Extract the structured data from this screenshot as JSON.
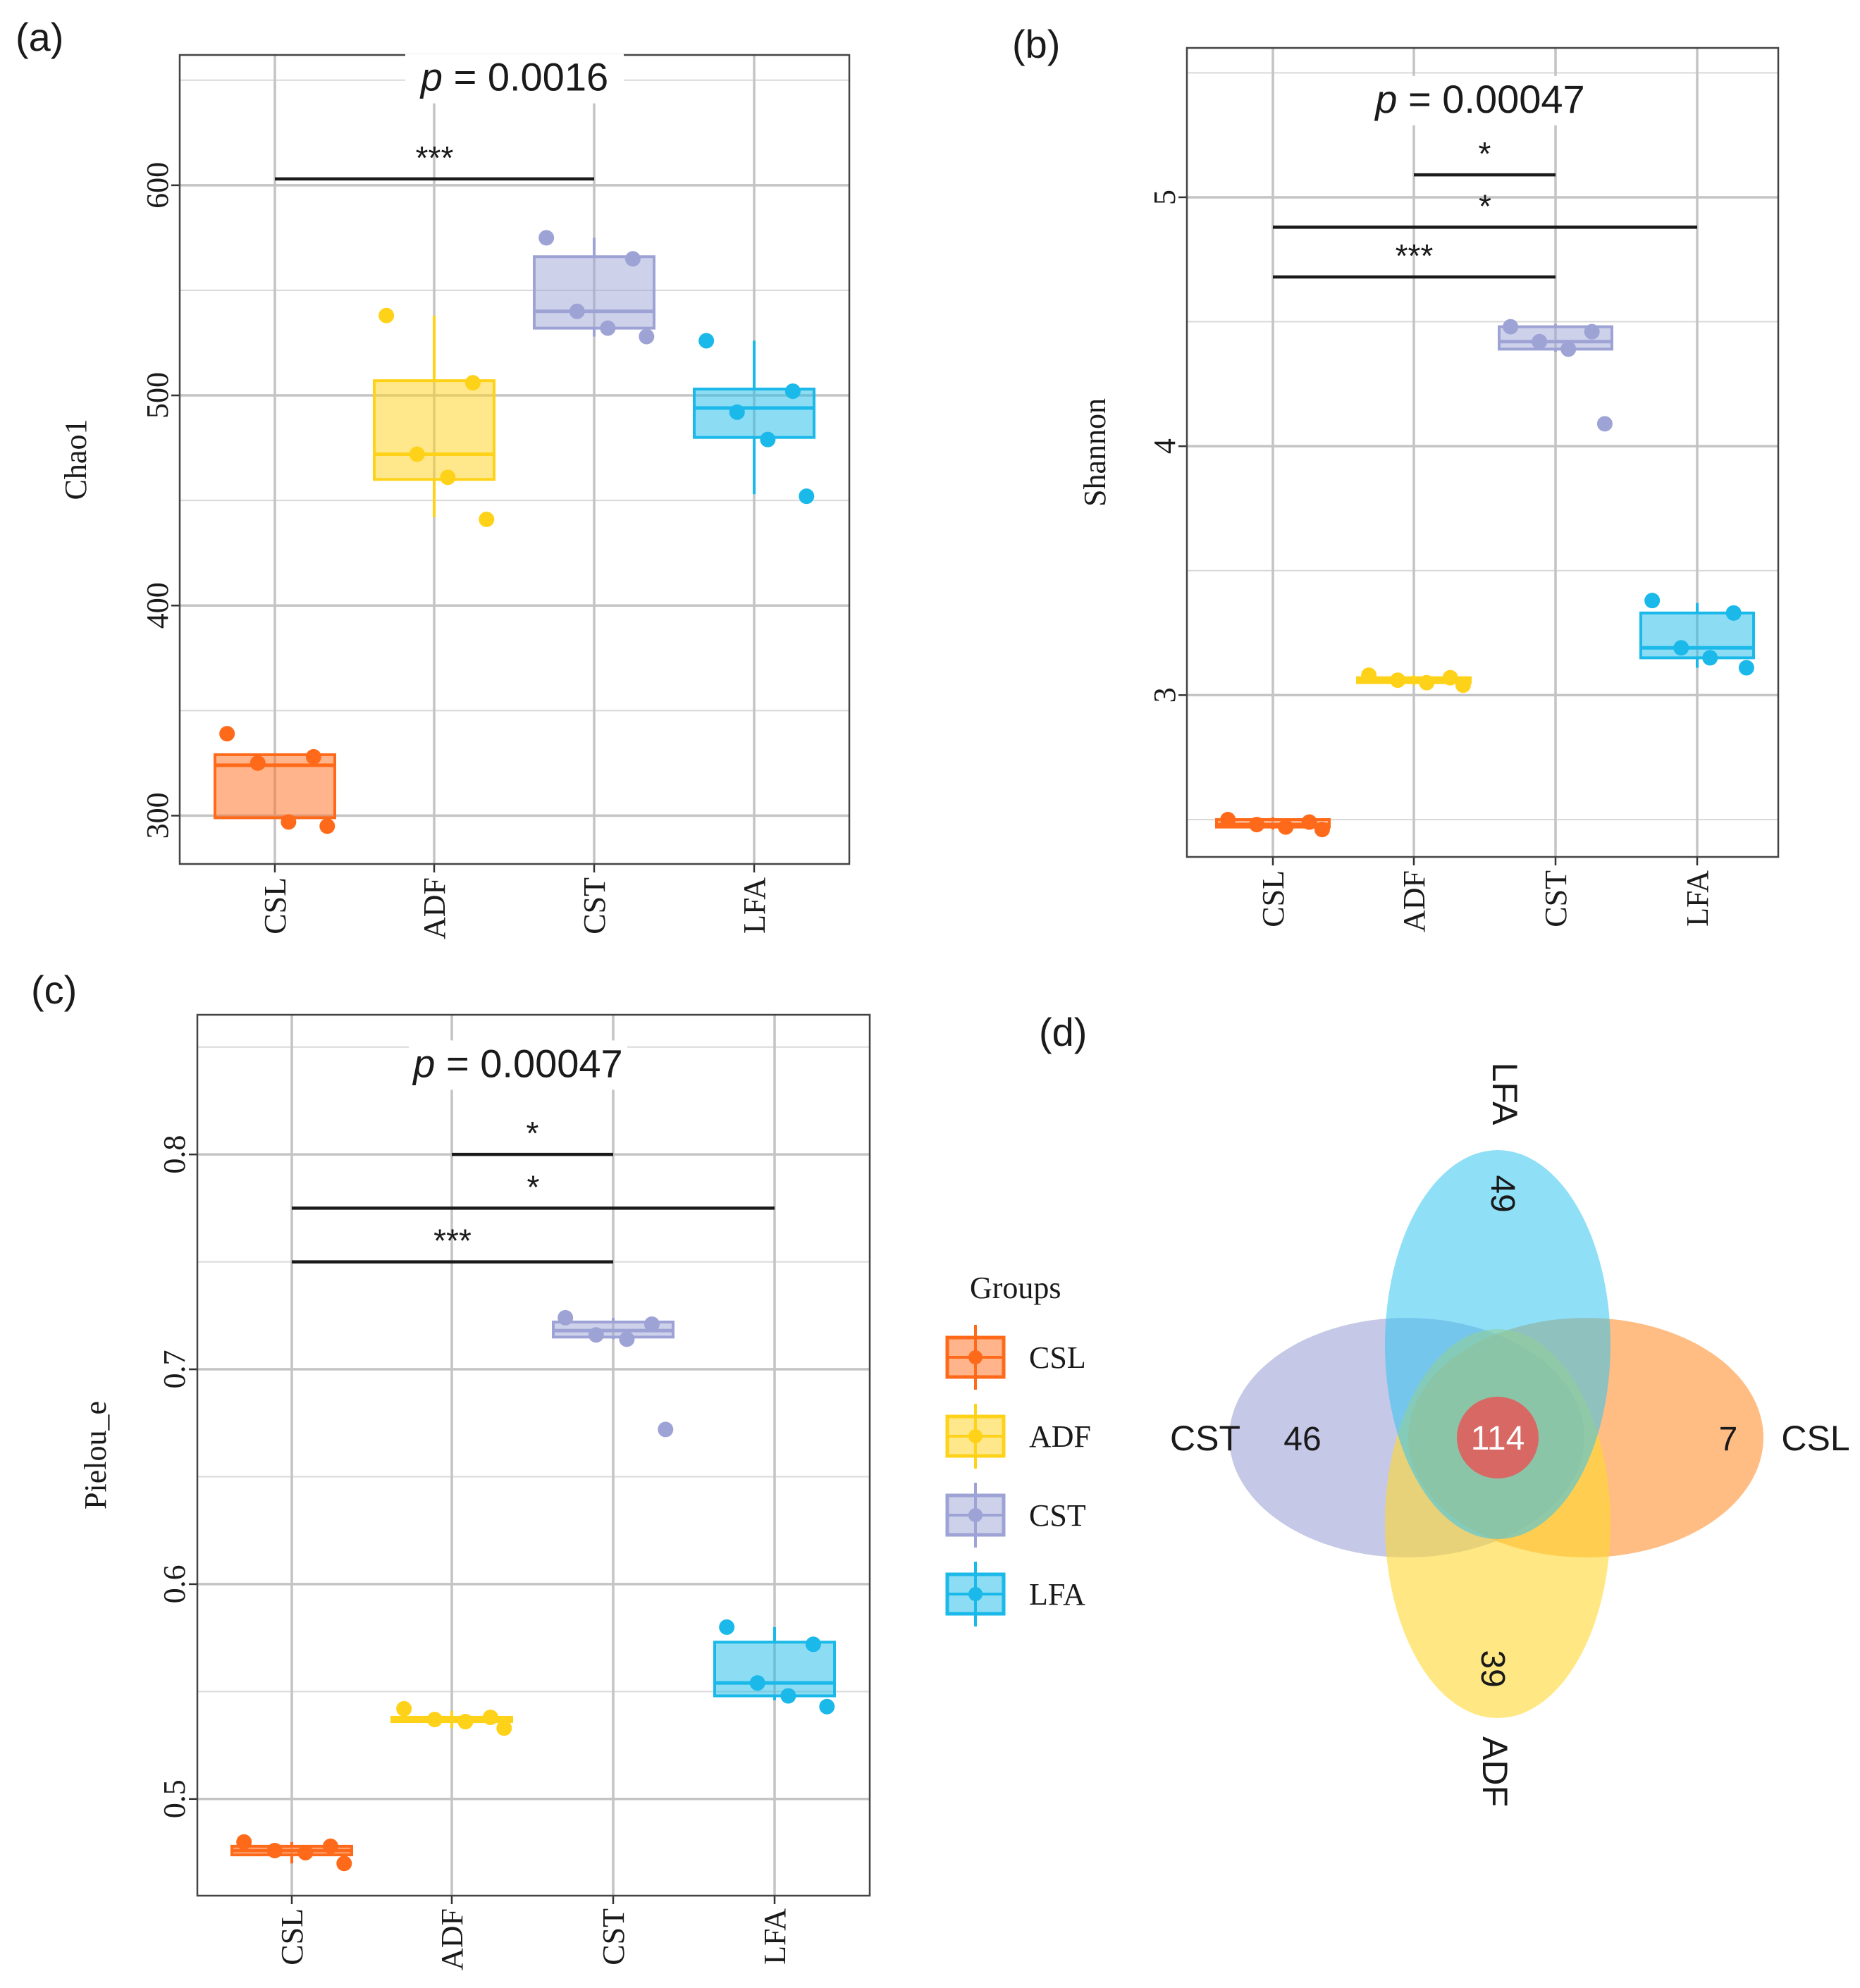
{
  "colors": {
    "CSL": "#ff6a1a",
    "ADF": "#ffd21a",
    "CST": "#9ea3d6",
    "LFA": "#1ab9ea",
    "grid": "#bdbdbd",
    "venn_center": "#e05d5d"
  },
  "legend": {
    "title": "Groups",
    "items": [
      "CSL",
      "ADF",
      "CST",
      "LFA"
    ]
  },
  "chart_data": [
    {
      "panel": "(a)",
      "type": "box",
      "title": "",
      "xlabel": "",
      "ylabel": "Chao1",
      "categories": [
        "CSL",
        "ADF",
        "CST",
        "LFA"
      ],
      "ylim": [
        277,
        662
      ],
      "yticks": [
        300,
        400,
        500,
        600
      ],
      "ytick_labels": [
        "300",
        "400",
        "500",
        "600"
      ],
      "p_value": {
        "prefix": "p",
        "text": " = 0.0016",
        "y": 645
      },
      "comparisons": [
        {
          "from": "CSL",
          "to": "CST",
          "y": 603,
          "label": "***"
        }
      ],
      "boxes": [
        {
          "group": "CSL",
          "q1": 299,
          "median": 324,
          "q3": 329,
          "whisker_low": 299,
          "whisker_high": 329,
          "points": [
            339,
            328,
            325,
            297,
            295
          ]
        },
        {
          "group": "ADF",
          "q1": 460,
          "median": 472,
          "q3": 507,
          "whisker_low": 442,
          "whisker_high": 538,
          "points": [
            538,
            506,
            472,
            461,
            441
          ]
        },
        {
          "group": "CST",
          "q1": 532,
          "median": 540,
          "q3": 566,
          "whisker_low": 528,
          "whisker_high": 575,
          "points": [
            575,
            565,
            540,
            532,
            528
          ]
        },
        {
          "group": "LFA",
          "q1": 480,
          "median": 494,
          "q3": 503,
          "whisker_low": 453,
          "whisker_high": 526,
          "points": [
            526,
            502,
            492,
            479,
            452
          ]
        }
      ]
    },
    {
      "panel": "(b)",
      "type": "box",
      "title": "",
      "xlabel": "",
      "ylabel": "Shannon",
      "categories": [
        "CSL",
        "ADF",
        "CST",
        "LFA"
      ],
      "ylim": [
        2.35,
        5.6
      ],
      "yticks": [
        3,
        4,
        5
      ],
      "ytick_labels": [
        "3",
        "4",
        "5"
      ],
      "p_value": {
        "prefix": "p",
        "text": " = 0.00047",
        "y": 5.34
      },
      "comparisons": [
        {
          "from": "ADF",
          "to": "CST",
          "y": 5.09,
          "label": "*"
        },
        {
          "from": "CSL",
          "to": "LFA",
          "y": 4.88,
          "label": "*"
        },
        {
          "from": "CSL",
          "to": "CST",
          "y": 4.68,
          "label": "***"
        }
      ],
      "boxes": [
        {
          "group": "CSL",
          "q1": 2.47,
          "median": 2.48,
          "q3": 2.5,
          "whisker_low": 2.46,
          "whisker_high": 2.51,
          "points": [
            2.5,
            2.49,
            2.48,
            2.47,
            2.46
          ]
        },
        {
          "group": "ADF",
          "q1": 3.05,
          "median": 3.06,
          "q3": 3.07,
          "whisker_low": 3.04,
          "whisker_high": 3.08,
          "points": [
            3.08,
            3.07,
            3.06,
            3.05,
            3.04
          ]
        },
        {
          "group": "CST",
          "q1": 4.39,
          "median": 4.42,
          "q3": 4.48,
          "whisker_low": 4.38,
          "whisker_high": 4.49,
          "points": [
            4.48,
            4.46,
            4.42,
            4.39,
            4.09
          ]
        },
        {
          "group": "LFA",
          "q1": 3.15,
          "median": 3.19,
          "q3": 3.33,
          "whisker_low": 3.11,
          "whisker_high": 3.37,
          "points": [
            3.38,
            3.33,
            3.19,
            3.15,
            3.11
          ]
        }
      ]
    },
    {
      "panel": "(c)",
      "type": "box",
      "title": "",
      "xlabel": "",
      "ylabel": "Pielou_e",
      "categories": [
        "CSL",
        "ADF",
        "CST",
        "LFA"
      ],
      "ylim": [
        0.455,
        0.865
      ],
      "yticks": [
        0.5,
        0.6,
        0.7,
        0.8
      ],
      "ytick_labels": [
        "0.5",
        "0.6",
        "0.7",
        "0.8"
      ],
      "p_value": {
        "prefix": "p",
        "text": " = 0.00047",
        "y": 0.836
      },
      "comparisons": [
        {
          "from": "ADF",
          "to": "CST",
          "y": 0.8,
          "label": "*"
        },
        {
          "from": "CSL",
          "to": "LFA",
          "y": 0.775,
          "label": "*"
        },
        {
          "from": "CSL",
          "to": "CST",
          "y": 0.75,
          "label": "***"
        }
      ],
      "boxes": [
        {
          "group": "CSL",
          "q1": 0.474,
          "median": 0.476,
          "q3": 0.478,
          "whisker_low": 0.47,
          "whisker_high": 0.48,
          "points": [
            0.48,
            0.478,
            0.476,
            0.475,
            0.47
          ]
        },
        {
          "group": "ADF",
          "q1": 0.536,
          "median": 0.537,
          "q3": 0.538,
          "whisker_low": 0.533,
          "whisker_high": 0.541,
          "points": [
            0.542,
            0.538,
            0.537,
            0.536,
            0.533
          ]
        },
        {
          "group": "CST",
          "q1": 0.715,
          "median": 0.718,
          "q3": 0.722,
          "whisker_low": 0.714,
          "whisker_high": 0.724,
          "points": [
            0.724,
            0.721,
            0.716,
            0.714,
            0.672
          ]
        },
        {
          "group": "LFA",
          "q1": 0.548,
          "median": 0.554,
          "q3": 0.573,
          "whisker_low": 0.546,
          "whisker_high": 0.58,
          "points": [
            0.58,
            0.572,
            0.554,
            0.548,
            0.543
          ]
        }
      ]
    }
  ],
  "venn": {
    "panel": "(d)",
    "sets": [
      {
        "name": "LFA",
        "unique": "49"
      },
      {
        "name": "CST",
        "unique": "46"
      },
      {
        "name": "CSL",
        "unique": "7"
      },
      {
        "name": "ADF",
        "unique": "39"
      }
    ],
    "shared_all": "114"
  }
}
